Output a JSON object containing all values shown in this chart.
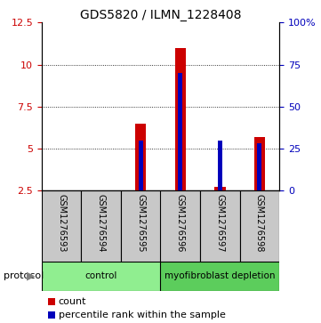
{
  "title": "GDS5820 / ILMN_1228408",
  "samples": [
    "GSM1276593",
    "GSM1276594",
    "GSM1276595",
    "GSM1276596",
    "GSM1276597",
    "GSM1276598"
  ],
  "count_values": [
    2.5,
    2.5,
    6.5,
    11.0,
    2.7,
    5.7
  ],
  "percentile_values": [
    0,
    0,
    3,
    7,
    3,
    2.8
  ],
  "groups": [
    {
      "label": "control",
      "start": 0,
      "end": 3,
      "color": "#90EE90"
    },
    {
      "label": "myofibroblast depletion",
      "start": 3,
      "end": 6,
      "color": "#5CCD5C"
    }
  ],
  "ylim_left": [
    2.5,
    12.5
  ],
  "ylim_right": [
    0,
    100
  ],
  "yticks_left": [
    2.5,
    5.0,
    7.5,
    10.0,
    12.5
  ],
  "ytick_labels_left": [
    "2.5",
    "5",
    "7.5",
    "10",
    "12.5"
  ],
  "yticks_right": [
    0,
    25,
    50,
    75,
    100
  ],
  "ytick_labels_right": [
    "0",
    "25",
    "50",
    "75",
    "100%"
  ],
  "count_color": "#CC0000",
  "percentile_color": "#0000BB",
  "grid_color": "#000000",
  "sample_bg_color": "#C8C8C8",
  "protocol_bg": "#90EE90",
  "protocol_bg2": "#5CCD5C",
  "legend_count": "count",
  "legend_percentile": "percentile rank within the sample",
  "bar_width": 0.28,
  "blue_bar_width": 0.12
}
